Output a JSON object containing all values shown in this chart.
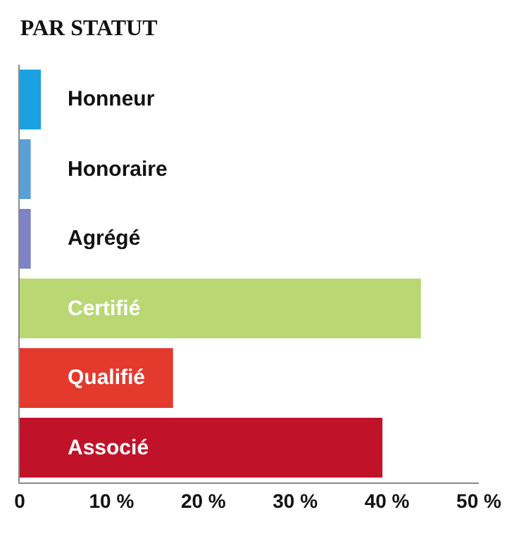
{
  "chart_data": {
    "type": "bar",
    "orientation": "horizontal",
    "title": "PAR STATUT",
    "categories": [
      "Honneur",
      "Honoraire",
      "Agrégé",
      "Certifié",
      "Qualifié",
      "Associé"
    ],
    "values": [
      2.3,
      1.2,
      1.2,
      43.7,
      16.7,
      39.5
    ],
    "colors": [
      "#1ba1e2",
      "#5b9fd6",
      "#7f82c4",
      "#b9d874",
      "#e4392d",
      "#c0132a"
    ],
    "xlim": [
      0,
      50
    ],
    "xticks": [
      {
        "value": 0,
        "label": "0"
      },
      {
        "value": 10,
        "label": "10 %"
      },
      {
        "value": 20,
        "label": "20 %"
      },
      {
        "value": 30,
        "label": "30 %"
      },
      {
        "value": 40,
        "label": "40 %"
      },
      {
        "value": 50,
        "label": "50 %"
      }
    ],
    "grid": false,
    "legend": false
  }
}
